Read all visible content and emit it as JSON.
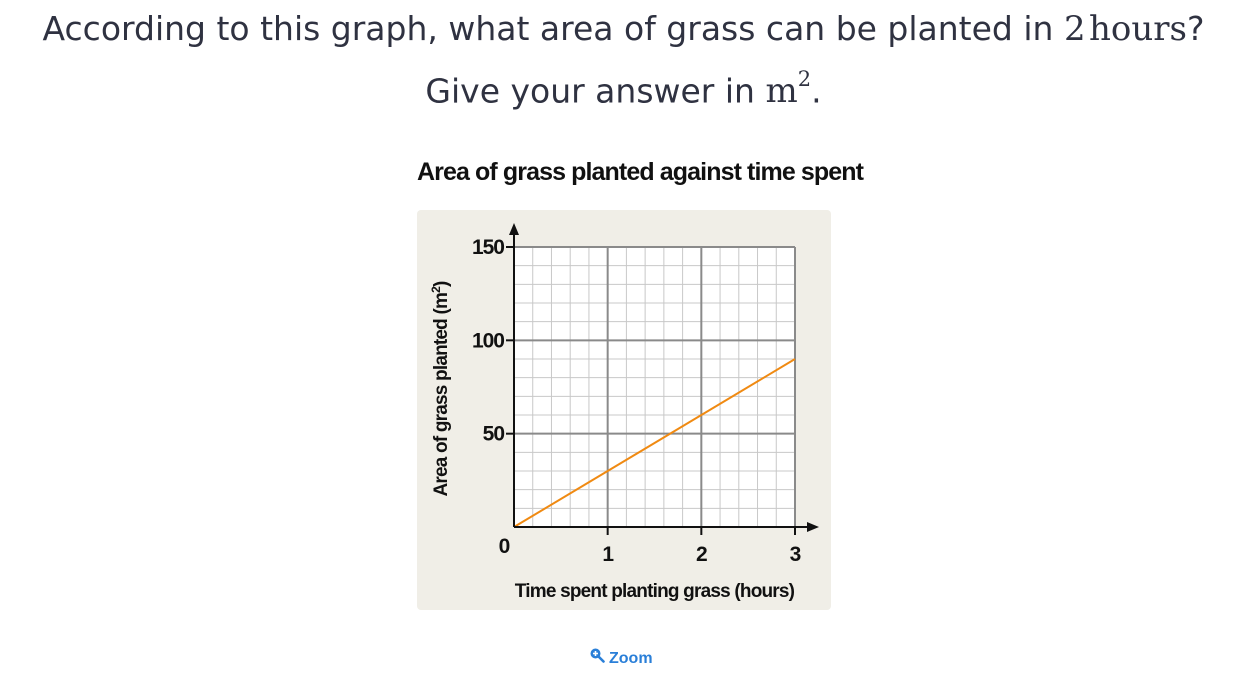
{
  "question": {
    "line1_prefix": "According to this graph, what area of grass can be planted in ",
    "hours_value": "2",
    "hours_unit": "hours",
    "line1_suffix": "?",
    "line2_prefix": "Give your answer in ",
    "unit_base": "m",
    "unit_exp": "2",
    "line2_suffix": "."
  },
  "zoom": {
    "label": "Zoom",
    "icon": "zoom-in-icon"
  },
  "chart_data": {
    "type": "line",
    "title": "Area of grass planted against time spent",
    "xlabel": "Time spent planting grass (hours)",
    "ylabel": "Area of grass planted (m",
    "ylabel_exp": "2",
    "ylabel_close": ")",
    "xlim": [
      0,
      3
    ],
    "ylim": [
      0,
      150
    ],
    "x_ticks": [
      "1",
      "2",
      "3"
    ],
    "y_ticks": [
      "50",
      "100",
      "150"
    ],
    "origin_label": "0",
    "x_major": [
      0,
      1,
      2,
      3
    ],
    "y_major": [
      0,
      50,
      100,
      150
    ],
    "minor_step_x": 0.2,
    "minor_step_y": 10,
    "grid": true,
    "series": [
      {
        "x": [
          0,
          3
        ],
        "y": [
          0,
          90
        ]
      }
    ],
    "colors": {
      "line": "#f08a12",
      "grid_major": "#8a8a8a",
      "grid_minor": "#c8c8c8",
      "plot_bg": "#ffffff",
      "axis": "#111111"
    }
  }
}
